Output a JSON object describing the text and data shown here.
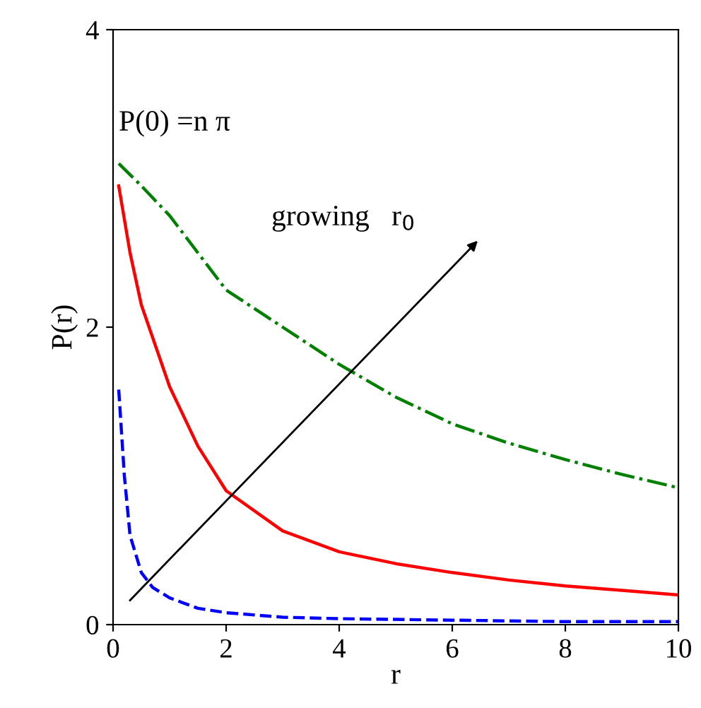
{
  "chart_data": {
    "type": "line",
    "xlabel": "r",
    "ylabel": "P(r)",
    "xlim": [
      0,
      10
    ],
    "ylim": [
      0,
      4
    ],
    "xticks": [
      0,
      2,
      4,
      6,
      8,
      10
    ],
    "yticks": [
      0,
      2,
      4
    ],
    "grid": false,
    "legend": false,
    "series": [
      {
        "color": "#008000",
        "line_style": "dashdot",
        "x": [
          0.1,
          0.5,
          1,
          2,
          3,
          4,
          5,
          6,
          7,
          8,
          9,
          10
        ],
        "values": [
          3.1,
          2.95,
          2.75,
          2.25,
          2.0,
          1.75,
          1.53,
          1.35,
          1.22,
          1.11,
          1.01,
          0.92
        ]
      },
      {
        "color": "#ff0000",
        "line_style": "solid",
        "x": [
          0.1,
          0.3,
          0.5,
          1,
          1.5,
          2,
          3,
          4,
          5,
          6,
          7,
          8,
          9,
          10
        ],
        "values": [
          2.95,
          2.5,
          2.15,
          1.6,
          1.2,
          0.9,
          0.63,
          0.49,
          0.41,
          0.35,
          0.3,
          0.26,
          0.23,
          0.2
        ]
      },
      {
        "color": "#0000ff",
        "line_style": "dashed",
        "x": [
          0.1,
          0.2,
          0.3,
          0.5,
          0.7,
          1,
          1.5,
          2,
          3,
          4,
          6,
          8,
          10
        ],
        "values": [
          1.58,
          1.0,
          0.6,
          0.35,
          0.25,
          0.18,
          0.11,
          0.08,
          0.05,
          0.04,
          0.03,
          0.02,
          0.02
        ]
      }
    ],
    "annotations": [
      "P(0) =n π",
      "growing   r$_{0}$"
    ]
  }
}
